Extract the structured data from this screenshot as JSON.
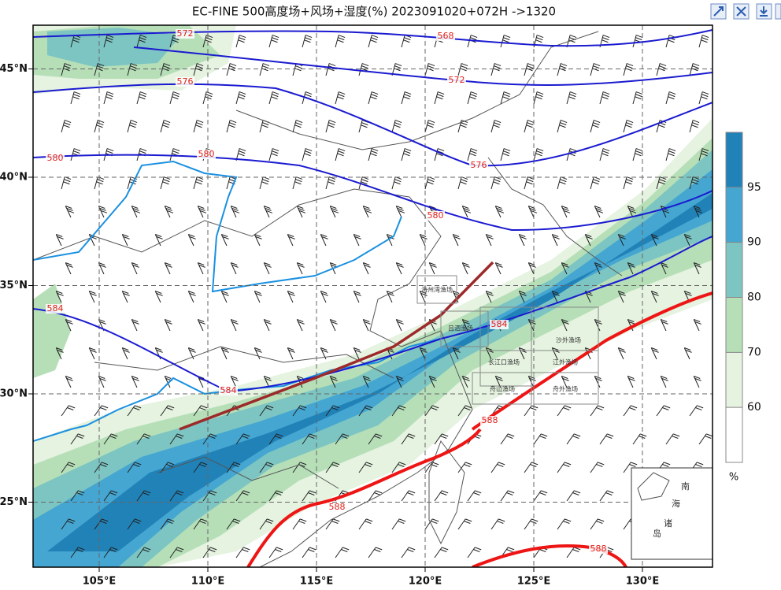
{
  "title": "EC-FINE 500高度场+风场+湿度(%) 2023091020+072H ->1320",
  "lon_ticks": [
    {
      "value": 105,
      "label": "105°E"
    },
    {
      "value": 110,
      "label": "110°E"
    },
    {
      "value": 115,
      "label": "115°E"
    },
    {
      "value": 120,
      "label": "120°E"
    },
    {
      "value": 125,
      "label": "125°E"
    },
    {
      "value": 130,
      "label": "130°E"
    }
  ],
  "lat_ticks": [
    {
      "value": 45,
      "label": "45°N"
    },
    {
      "value": 40,
      "label": "40°N"
    },
    {
      "value": 35,
      "label": "35°N"
    },
    {
      "value": 30,
      "label": "30°N"
    },
    {
      "value": 25,
      "label": "25°N"
    }
  ],
  "colorbar": {
    "ticks": [
      60,
      70,
      80,
      90,
      95
    ],
    "unit": "%"
  },
  "contour_labels": [
    572,
    568,
    576,
    572,
    580,
    580,
    576,
    580,
    584,
    584,
    584,
    588,
    588,
    588
  ],
  "fishing_grounds": [
    "海州湾渔场",
    "吕泗渔场",
    "沙外渔场",
    "长江口渔场",
    "江外渔场",
    "舟山渔场",
    "舟外渔场"
  ],
  "inset_labels": [
    "南",
    "海",
    "诸",
    "岛"
  ]
}
